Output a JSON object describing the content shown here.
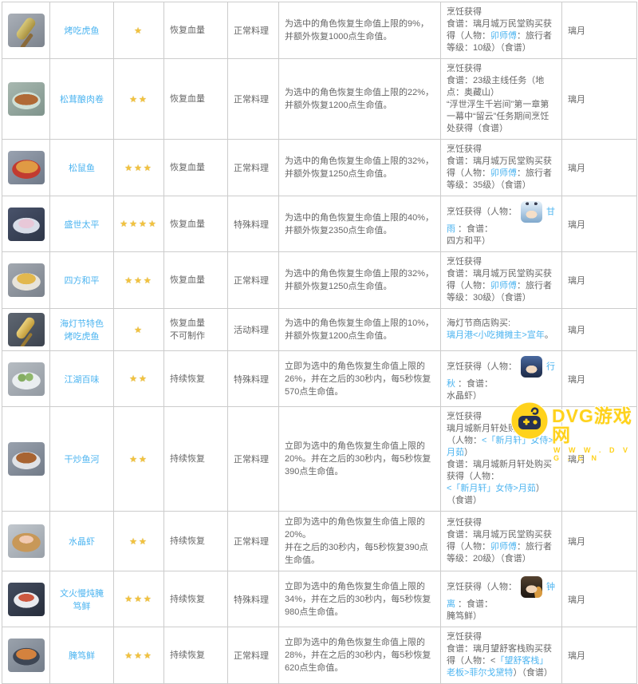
{
  "colors": {
    "link": "#4cb4f0",
    "stars": "#f2c23e",
    "watermark_accent": "#ffd21c",
    "border": "#cccccc",
    "text": "#666666"
  },
  "watermark": {
    "brand": "DVG游戏网",
    "url": "W W W . D V G . C N",
    "icon": "gamepad-icon"
  },
  "table": {
    "rows": [
      {
        "name": "烤吃虎鱼",
        "stars": 1,
        "icon": "grilled-tiger-fish",
        "recovery_type": "恢复血量",
        "category": "正常料理",
        "description": "为选中的角色恢复生命值上限的9%，并额外恢复1000点生命值。",
        "acquisition": [
          {
            "t": "烹饪获得\n食谱：璃月城万民堂购买获得（人物："
          },
          {
            "t": "卯师傅",
            "link": true
          },
          {
            "t": "：旅行者等级：10级）（食谱）"
          }
        ],
        "region": "璃月"
      },
      {
        "name": "松茸酿肉卷",
        "stars": 2,
        "icon": "matsutake-meat-rolls",
        "recovery_type": "恢复血量",
        "category": "正常料理",
        "description": "为选中的角色恢复生命值上限的22%，并额外恢复1200点生命值。",
        "acquisition": [
          {
            "t": "烹饪获得\n食谱：23级主线任务（地点：奥藏山）\n“浮世浮生千岩间”第一章第一幕中“留云”任务期间烹饪处获得（食谱）"
          }
        ],
        "region": "璃月"
      },
      {
        "name": "松鼠鱼",
        "stars": 3,
        "icon": "squirrel-fish",
        "recovery_type": "恢复血量",
        "category": "正常料理",
        "description": "为选中的角色恢复生命值上限的32%，并额外恢复1250点生命值。",
        "acquisition": [
          {
            "t": "烹饪获得\n食谱：璃月城万民堂购买获得（人物："
          },
          {
            "t": "卯师傅",
            "link": true
          },
          {
            "t": "：旅行者等级：35级）（食谱）"
          }
        ],
        "region": "璃月"
      },
      {
        "name": "盛世太平",
        "stars": 4,
        "icon": "prosperous-peace",
        "recovery_type": "恢复血量",
        "category": "特殊料理",
        "description": "为选中的角色恢复生命值上限的40%，并额外恢复2350点生命值。",
        "acquisition": [
          {
            "t": "烹饪获得（人物："
          },
          {
            "avatar": "ganyu"
          },
          {
            "t": "甘雨",
            "link": true
          },
          {
            "t": " ：食谱：\n四方和平）"
          }
        ],
        "region": "璃月"
      },
      {
        "name": "四方和平",
        "stars": 3,
        "icon": "universal-peace",
        "recovery_type": "恢复血量",
        "category": "正常料理",
        "description": "为选中的角色恢复生命值上限的32%，并额外恢复1250点生命值。",
        "acquisition": [
          {
            "t": "烹饪获得\n食谱：璃月城万民堂购买获得（人物："
          },
          {
            "t": "卯师傅",
            "link": true
          },
          {
            "t": "：旅行者等级：30级）（食谱）"
          }
        ],
        "region": "璃月"
      },
      {
        "name": "海灯节特色烤吃虎鱼",
        "stars": 1,
        "icon": "festive-skewer",
        "recovery_type": "恢复血量\n不可制作",
        "category": "活动料理",
        "description": "为选中的角色恢复生命值上限的10%，并额外恢复1200点生命值。",
        "acquisition": [
          {
            "t": "海灯节商店购买:\n"
          },
          {
            "t": "璃月港<小吃摊摊主>宣年",
            "link": true
          },
          {
            "t": "。"
          }
        ],
        "region": "璃月"
      },
      {
        "name": "江湖百味",
        "stars": 2,
        "icon": "delicacy-parcels",
        "recovery_type": "持续恢复",
        "category": "特殊料理",
        "description": "立即为选中的角色恢复生命值上限的26%，并在之后的30秒内，每5秒恢复570点生命值。",
        "acquisition": [
          {
            "t": "烹饪获得（人物："
          },
          {
            "avatar": "xingqiu"
          },
          {
            "t": "行秋",
            "link": true
          },
          {
            "t": " ：食谱：\n水晶虾）"
          }
        ],
        "region": "璃月"
      },
      {
        "name": "干炒鱼河",
        "stars": 2,
        "icon": "fish-noodles",
        "recovery_type": "持续恢复",
        "category": "正常料理",
        "description": "立即为选中的角色恢复生命值上限的20%。并在之后的30秒内，每5秒恢复390点生命值。",
        "acquisition": [
          {
            "t": "烹饪获得\n璃月城新月轩处购买获得（人物："
          },
          {
            "t": "<「新月轩」女侍>月茹",
            "link": true
          },
          {
            "t": "）\n食谱：璃月城新月轩处购买获得（人物：\n"
          },
          {
            "t": "<「新月轩」女侍>月茹",
            "link": true
          },
          {
            "t": "）（食谱）"
          }
        ],
        "region": "璃月"
      },
      {
        "name": "水晶虾",
        "stars": 2,
        "icon": "crystal-shrimp",
        "recovery_type": "持续恢复",
        "category": "正常料理",
        "description": "立即为选中的角色恢复生命值上限的20%。\n并在之后的30秒内，每5秒恢复390点生命值。",
        "acquisition": [
          {
            "t": "烹饪获得\n食谱：璃月城万民堂购买获得（人物："
          },
          {
            "t": "卯师傅",
            "link": true
          },
          {
            "t": "：旅行者等级：20级）（食谱）"
          }
        ],
        "region": "璃月"
      },
      {
        "name": "文火慢炖腌笃鲜",
        "stars": 3,
        "icon": "slow-cooked-soup",
        "recovery_type": "持续恢复",
        "category": "特殊料理",
        "description": "立即为选中的角色恢复生命值上限的34%，并在之后的30秒内，每5秒恢复980点生命值。",
        "acquisition": [
          {
            "t": "烹饪获得（人物："
          },
          {
            "avatar": "zhongli"
          },
          {
            "t": "钟离",
            "link": true
          },
          {
            "t": " ：食谱：\n腌笃鲜）"
          }
        ],
        "region": "璃月"
      },
      {
        "name": "腌笃鲜",
        "stars": 3,
        "icon": "bamboo-shoot-soup",
        "recovery_type": "持续恢复",
        "category": "正常料理",
        "description": "立即为选中的角色恢复生命值上限的28%，并在之后的30秒内，每5秒恢复620点生命值。",
        "acquisition": [
          {
            "t": "烹饪获得\n食谱：璃月望舒客栈购买获得（人物：<"
          },
          {
            "t": "「望舒客栈」老板>菲尔戈黛特",
            "link": true
          },
          {
            "t": "）（食谱）"
          }
        ],
        "region": "璃月"
      }
    ]
  }
}
